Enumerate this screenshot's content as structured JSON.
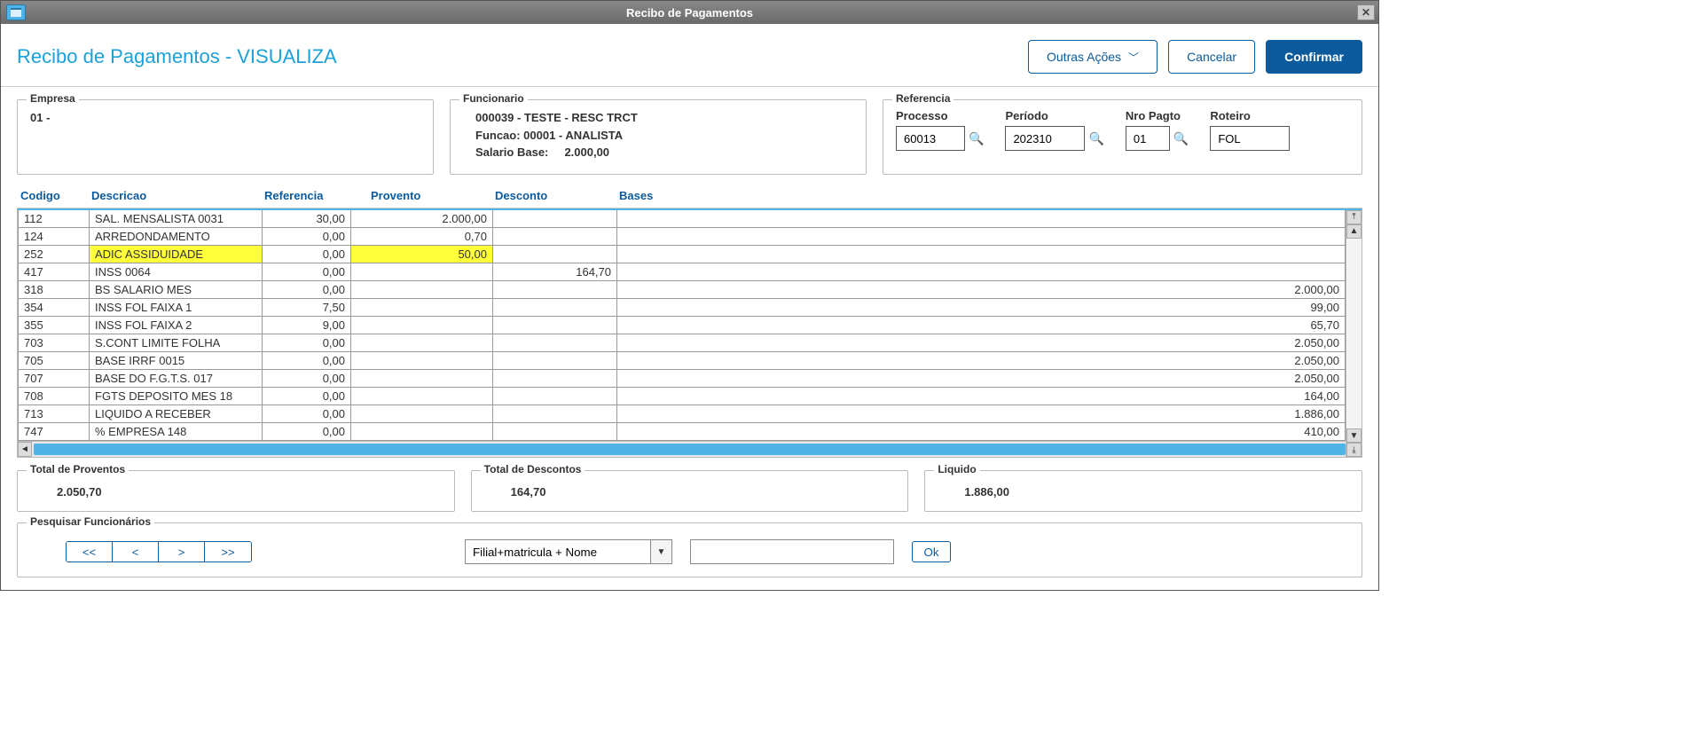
{
  "window": {
    "title": "Recibo de Pagamentos"
  },
  "header": {
    "title": "Recibo de Pagamentos - VISUALIZA",
    "btn_outras": "Outras Ações",
    "btn_cancel": "Cancelar",
    "btn_confirm": "Confirmar"
  },
  "empresa": {
    "legend": "Empresa",
    "value": "01 -"
  },
  "funcionario": {
    "legend": "Funcionario",
    "l1": "000039 - TESTE - RESC TRCT",
    "l2": "Funcao: 00001 - ANALISTA",
    "l3_label": "Salario Base:",
    "l3_value": "2.000,00"
  },
  "referencia": {
    "legend": "Referencia",
    "processo_label": "Processo",
    "processo": "60013",
    "periodo_label": "Período",
    "periodo": "202310",
    "nropagto_label": "Nro Pagto",
    "nropagto": "01",
    "roteiro_label": "Roteiro",
    "roteiro": "FOL"
  },
  "columns": {
    "codigo": "Codigo",
    "descricao": "Descricao",
    "referencia": "Referencia",
    "provento": "Provento",
    "desconto": "Desconto",
    "bases": "Bases"
  },
  "rows": [
    {
      "cod": "112",
      "desc": "SAL. MENSALISTA 0031",
      "ref": "30,00",
      "prov": "2.000,00",
      "dsc": "",
      "base": "",
      "hl": false
    },
    {
      "cod": "124",
      "desc": "ARREDONDAMENTO",
      "ref": "0,00",
      "prov": "0,70",
      "dsc": "",
      "base": "",
      "hl": false
    },
    {
      "cod": "252",
      "desc": "ADIC ASSIDUIDADE",
      "ref": "0,00",
      "prov": "50,00",
      "dsc": "",
      "base": "",
      "hl": true
    },
    {
      "cod": "417",
      "desc": "INSS 0064",
      "ref": "0,00",
      "prov": "",
      "dsc": "164,70",
      "base": "",
      "hl": false
    },
    {
      "cod": "318",
      "desc": "BS SALARIO MES",
      "ref": "0,00",
      "prov": "",
      "dsc": "",
      "base": "2.000,00",
      "hl": false
    },
    {
      "cod": "354",
      "desc": "INSS FOL FAIXA 1",
      "ref": "7,50",
      "prov": "",
      "dsc": "",
      "base": "99,00",
      "hl": false
    },
    {
      "cod": "355",
      "desc": "INSS FOL FAIXA 2",
      "ref": "9,00",
      "prov": "",
      "dsc": "",
      "base": "65,70",
      "hl": false
    },
    {
      "cod": "703",
      "desc": "S.CONT LIMITE FOLHA",
      "ref": "0,00",
      "prov": "",
      "dsc": "",
      "base": "2.050,00",
      "hl": false
    },
    {
      "cod": "705",
      "desc": "BASE IRRF 0015",
      "ref": "0,00",
      "prov": "",
      "dsc": "",
      "base": "2.050,00",
      "hl": false
    },
    {
      "cod": "707",
      "desc": "BASE DO F.G.T.S. 017",
      "ref": "0,00",
      "prov": "",
      "dsc": "",
      "base": "2.050,00",
      "hl": false
    },
    {
      "cod": "708",
      "desc": "FGTS DEPOSITO MES 18",
      "ref": "0,00",
      "prov": "",
      "dsc": "",
      "base": "164,00",
      "hl": false
    },
    {
      "cod": "713",
      "desc": "LIQUIDO A RECEBER",
      "ref": "0,00",
      "prov": "",
      "dsc": "",
      "base": "1.886,00",
      "hl": false
    },
    {
      "cod": "747",
      "desc": "% EMPRESA  148",
      "ref": "0,00",
      "prov": "",
      "dsc": "",
      "base": "410,00",
      "hl": false
    }
  ],
  "totals": {
    "proventos_legend": "Total de Proventos",
    "proventos": "2.050,70",
    "descontos_legend": "Total de Descontos",
    "descontos": "164,70",
    "liquido_legend": "Liquido",
    "liquido": "1.886,00"
  },
  "search": {
    "legend": "Pesquisar Funcionários",
    "nav_first": "<<",
    "nav_prev": "<",
    "nav_next": ">",
    "nav_last": ">>",
    "combo_value": "Filial+matricula + Nome",
    "ok": "Ok"
  },
  "colors": {
    "accent": "#1ba1d8",
    "primary": "#0a5a9c",
    "highlight": "#ffff3a",
    "scrollbar_thumb": "#4fb3e8"
  }
}
